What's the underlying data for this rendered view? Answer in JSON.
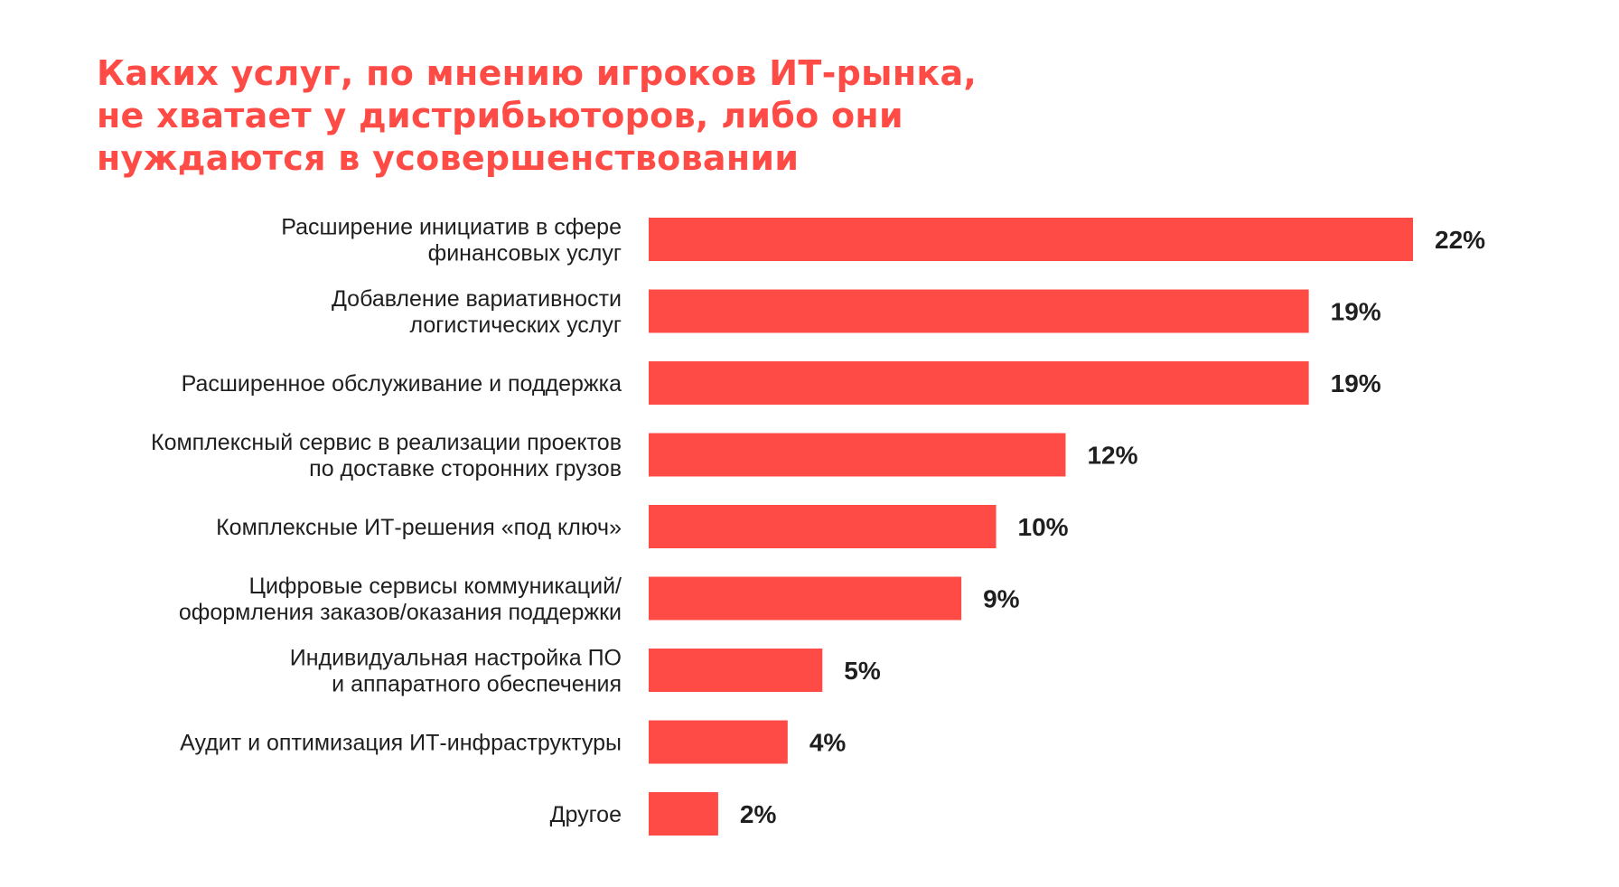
{
  "chart_data": {
    "type": "bar",
    "orientation": "horizontal",
    "title_lines": [
      "Каких услуг, по мнению игроков ИТ-рынка,",
      "не хватает у дистрибьюторов, либо они",
      "нуждаются в усовершенствовании"
    ],
    "categories": [
      [
        "Расширение инициатив в сфере",
        "финансовых услуг"
      ],
      [
        "Добавление вариативности",
        "логистических услуг"
      ],
      [
        "Расширенное обслуживание и поддержка"
      ],
      [
        "Комплексный сервис в реализации проектов",
        "по доставке сторонних грузов"
      ],
      [
        "Комплексные ИТ-решения «под ключ»"
      ],
      [
        "Цифровые сервисы коммуникаций/",
        "оформления заказов/оказания поддержки"
      ],
      [
        "Индивидуальная настройка ПО",
        "и аппаратного обеспечения"
      ],
      [
        "Аудит и оптимизация ИТ-инфраструктуры"
      ],
      [
        "Другое"
      ]
    ],
    "values": [
      22,
      19,
      19,
      12,
      10,
      9,
      5,
      4,
      2
    ],
    "value_labels": [
      "22%",
      "19%",
      "19%",
      "12%",
      "10%",
      "9%",
      "5%",
      "4%",
      "2%"
    ],
    "unit": "%",
    "xlim": [
      0,
      22
    ],
    "grid": false,
    "legend": "none",
    "colors": {
      "bar": "#ff4b45",
      "title": "#ff4b45",
      "label": "#1f1f1f"
    }
  }
}
